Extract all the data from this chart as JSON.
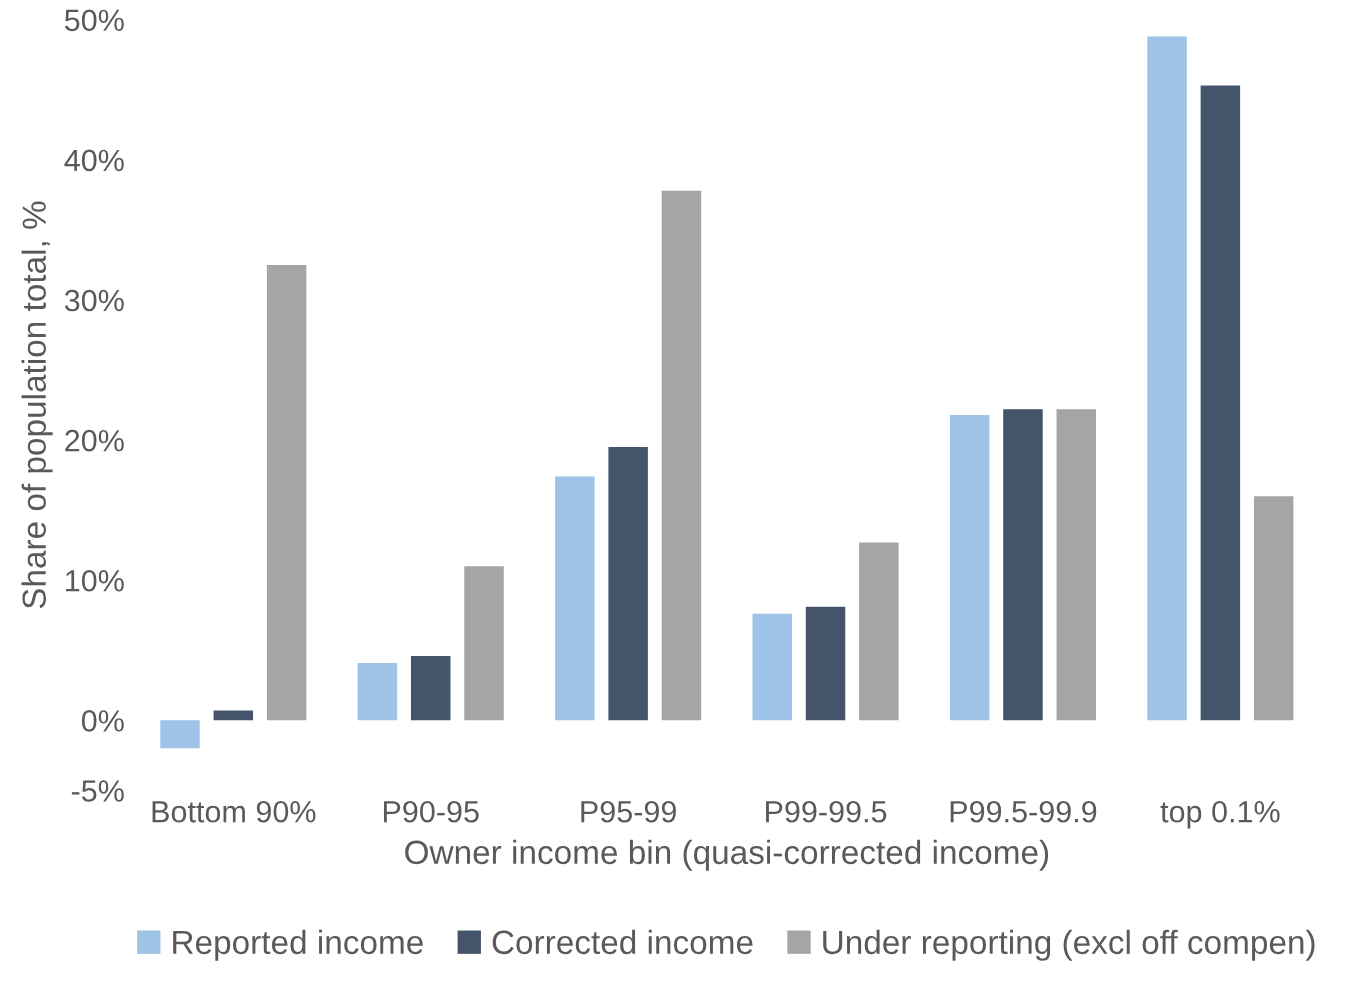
{
  "chart_data": {
    "type": "bar",
    "xlabel": "Owner income bin (quasi-corrected income)",
    "ylabel": "Share of population total, %",
    "categories": [
      "Bottom 90%",
      "P90-95",
      "P95-99",
      "P99-99.5",
      "P99.5-99.9",
      "top 0.1%"
    ],
    "series": [
      {
        "name": "Reported income",
        "color": "#9dc3e6",
        "values": [
          -2.0,
          4.1,
          17.4,
          7.6,
          21.8,
          48.8
        ]
      },
      {
        "name": "Corrected income",
        "color": "#44546a",
        "values": [
          0.7,
          4.6,
          19.5,
          8.1,
          22.2,
          45.3
        ]
      },
      {
        "name": "Under reporting (excl off compen)",
        "color": "#a5a5a5",
        "values": [
          32.5,
          11.0,
          37.8,
          12.7,
          22.2,
          16.0
        ]
      }
    ],
    "ylim": [
      -5,
      50
    ],
    "yticks": [
      {
        "value": -5,
        "label": "-5%"
      },
      {
        "value": 0,
        "label": "0%"
      },
      {
        "value": 10,
        "label": "10%"
      },
      {
        "value": 20,
        "label": "20%"
      },
      {
        "value": 30,
        "label": "30%"
      },
      {
        "value": 40,
        "label": "40%"
      },
      {
        "value": 50,
        "label": "50%"
      }
    ],
    "grid": false,
    "legend": "bottom"
  }
}
